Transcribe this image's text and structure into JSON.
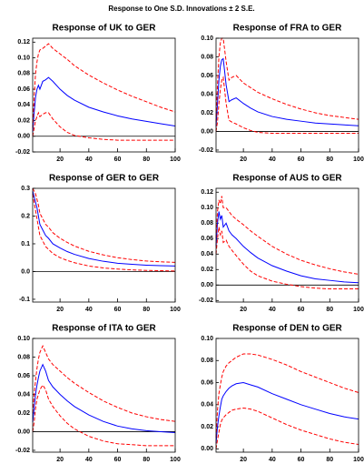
{
  "title": "Response to One S.D. Innovations ± 2 S.E.",
  "chart_data": [
    {
      "type": "line",
      "title": "Response of UK to GER",
      "x": [
        1,
        2,
        3,
        4,
        5,
        6,
        8,
        10,
        12,
        15,
        20,
        25,
        30,
        40,
        50,
        60,
        70,
        80,
        90,
        100
      ],
      "series": [
        {
          "color": "#0000ff",
          "style": "solid",
          "values": [
            0.005,
            0.03,
            0.05,
            0.06,
            0.065,
            0.06,
            0.07,
            0.072,
            0.075,
            0.07,
            0.06,
            0.052,
            0.046,
            0.037,
            0.031,
            0.026,
            0.022,
            0.019,
            0.016,
            0.013
          ]
        },
        {
          "color": "#ff0000",
          "style": "dashed",
          "values": [
            0.01,
            0.05,
            0.08,
            0.095,
            0.105,
            0.11,
            0.112,
            0.115,
            0.118,
            0.112,
            0.105,
            0.098,
            0.09,
            0.078,
            0.068,
            0.059,
            0.051,
            0.044,
            0.037,
            0.031
          ]
        },
        {
          "color": "#ff0000",
          "style": "dashed",
          "values": [
            0,
            0.01,
            0.02,
            0.025,
            0.03,
            0.025,
            0.028,
            0.03,
            0.03,
            0.022,
            0.012,
            0.005,
            0.001,
            -0.002,
            -0.004,
            -0.005,
            -0.005,
            -0.005,
            -0.005,
            -0.005
          ]
        }
      ],
      "xlim": [
        1,
        100
      ],
      "ylim": [
        -0.02,
        0.125
      ],
      "xticks": [
        20,
        40,
        60,
        80,
        100
      ],
      "yticks": [
        -0.02,
        {
          "value": 0,
          "label": "0.00"
        },
        0.02,
        0.04,
        0.06,
        0.08,
        {
          "value": 0.1,
          "label": "0.10"
        },
        0.12
      ],
      "zero_line": true
    },
    {
      "type": "line",
      "title": "Response of FRA to GER",
      "x": [
        1,
        2,
        3,
        4,
        5,
        6,
        8,
        10,
        12,
        15,
        20,
        25,
        30,
        40,
        50,
        60,
        70,
        80,
        90,
        100
      ],
      "series": [
        {
          "color": "#0000ff",
          "style": "solid",
          "values": [
            0.005,
            0.03,
            0.055,
            0.07,
            0.077,
            0.078,
            0.05,
            0.032,
            0.034,
            0.036,
            0.03,
            0.025,
            0.021,
            0.016,
            0.013,
            0.011,
            0.009,
            0.008,
            0.007,
            0.006
          ]
        },
        {
          "color": "#ff0000",
          "style": "dashed",
          "values": [
            0.01,
            0.05,
            0.08,
            0.095,
            0.1,
            0.1,
            0.075,
            0.055,
            0.058,
            0.06,
            0.052,
            0.047,
            0.042,
            0.035,
            0.029,
            0.024,
            0.02,
            0.017,
            0.015,
            0.013
          ]
        },
        {
          "color": "#ff0000",
          "style": "dashed",
          "values": [
            0,
            0.01,
            0.03,
            0.045,
            0.055,
            0.058,
            0.03,
            0.012,
            0.01,
            0.008,
            0.004,
            0.001,
            -0.001,
            -0.002,
            -0.002,
            -0.002,
            -0.002,
            -0.002,
            -0.002,
            -0.002
          ]
        }
      ],
      "xlim": [
        1,
        100
      ],
      "ylim": [
        -0.022,
        0.1
      ],
      "xticks": [
        20,
        40,
        60,
        80,
        100
      ],
      "yticks": [
        -0.02,
        {
          "value": 0,
          "label": "0.00"
        },
        0.02,
        0.04,
        0.06,
        0.08,
        {
          "value": 0.1,
          "label": "0.10"
        }
      ],
      "zero_line": true
    },
    {
      "type": "line",
      "title": "Response of GER to GER",
      "x": [
        1,
        2,
        3,
        4,
        5,
        6,
        8,
        10,
        12,
        15,
        20,
        25,
        30,
        40,
        50,
        60,
        70,
        80,
        90,
        100
      ],
      "series": [
        {
          "color": "#0000ff",
          "style": "solid",
          "values": [
            0.29,
            0.27,
            0.25,
            0.23,
            0.2,
            0.17,
            0.15,
            0.13,
            0.12,
            0.1,
            0.085,
            0.072,
            0.062,
            0.047,
            0.037,
            0.03,
            0.026,
            0.023,
            0.021,
            0.02
          ]
        },
        {
          "color": "#ff0000",
          "style": "dashed",
          "values": [
            0.3,
            0.29,
            0.28,
            0.26,
            0.24,
            0.21,
            0.19,
            0.17,
            0.16,
            0.14,
            0.12,
            0.105,
            0.092,
            0.073,
            0.06,
            0.05,
            0.043,
            0.038,
            0.035,
            0.033
          ]
        },
        {
          "color": "#ff0000",
          "style": "dashed",
          "values": [
            0.28,
            0.25,
            0.22,
            0.19,
            0.16,
            0.13,
            0.11,
            0.09,
            0.08,
            0.065,
            0.05,
            0.04,
            0.032,
            0.02,
            0.013,
            0.009,
            0.006,
            0.004,
            0.003,
            0.002
          ]
        }
      ],
      "xlim": [
        1,
        100
      ],
      "ylim": [
        -0.11,
        0.3
      ],
      "xticks": [
        20,
        40,
        60,
        80,
        100
      ],
      "yticks": [
        -0.1,
        {
          "value": 0,
          "label": "0.0"
        },
        0.1,
        0.2,
        0.3
      ],
      "zero_line": true
    },
    {
      "type": "line",
      "title": "Response of AUS to GER",
      "x": [
        1,
        2,
        3,
        4,
        5,
        6,
        8,
        10,
        12,
        15,
        20,
        25,
        30,
        40,
        50,
        60,
        70,
        80,
        90,
        100
      ],
      "series": [
        {
          "color": "#0000ff",
          "style": "solid",
          "values": [
            0.05,
            0.08,
            0.095,
            0.085,
            0.09,
            0.075,
            0.08,
            0.07,
            0.065,
            0.06,
            0.05,
            0.042,
            0.035,
            0.025,
            0.018,
            0.012,
            0.008,
            0.006,
            0.004,
            0.003
          ]
        },
        {
          "color": "#ff0000",
          "style": "dashed",
          "values": [
            0.06,
            0.095,
            0.11,
            0.105,
            0.115,
            0.1,
            0.1,
            0.095,
            0.09,
            0.085,
            0.078,
            0.07,
            0.063,
            0.05,
            0.04,
            0.032,
            0.026,
            0.021,
            0.017,
            0.014
          ]
        },
        {
          "color": "#ff0000",
          "style": "dashed",
          "values": [
            0.04,
            0.06,
            0.075,
            0.065,
            0.07,
            0.055,
            0.058,
            0.05,
            0.045,
            0.038,
            0.027,
            0.018,
            0.012,
            0.005,
            0.001,
            -0.002,
            -0.004,
            -0.005,
            -0.005,
            -0.005
          ]
        }
      ],
      "xlim": [
        1,
        100
      ],
      "ylim": [
        -0.022,
        0.125
      ],
      "xticks": [
        20,
        40,
        60,
        80,
        100
      ],
      "yticks": [
        -0.02,
        {
          "value": 0,
          "label": "0.00"
        },
        0.02,
        0.04,
        0.06,
        0.08,
        {
          "value": 0.1,
          "label": "0.10"
        },
        0.12
      ],
      "zero_line": true
    },
    {
      "type": "line",
      "title": "Response of ITA to GER",
      "x": [
        1,
        2,
        3,
        4,
        5,
        6,
        8,
        10,
        12,
        15,
        20,
        25,
        30,
        40,
        50,
        60,
        70,
        80,
        90,
        100
      ],
      "series": [
        {
          "color": "#0000ff",
          "style": "solid",
          "values": [
            0.01,
            0.025,
            0.04,
            0.05,
            0.058,
            0.065,
            0.072,
            0.065,
            0.055,
            0.048,
            0.04,
            0.033,
            0.027,
            0.018,
            0.011,
            0.006,
            0.003,
            0.001,
            0,
            -0.001
          ]
        },
        {
          "color": "#ff0000",
          "style": "dashed",
          "values": [
            0.02,
            0.04,
            0.055,
            0.068,
            0.078,
            0.085,
            0.092,
            0.085,
            0.078,
            0.072,
            0.065,
            0.058,
            0.052,
            0.042,
            0.033,
            0.026,
            0.02,
            0.016,
            0.013,
            0.011
          ]
        },
        {
          "color": "#ff0000",
          "style": "dashed",
          "values": [
            0,
            0.01,
            0.025,
            0.035,
            0.04,
            0.045,
            0.05,
            0.045,
            0.035,
            0.027,
            0.017,
            0.009,
            0.003,
            -0.005,
            -0.01,
            -0.013,
            -0.014,
            -0.015,
            -0.015,
            -0.015
          ]
        }
      ],
      "xlim": [
        1,
        100
      ],
      "ylim": [
        -0.022,
        0.1
      ],
      "xticks": [
        20,
        40,
        60,
        80,
        100
      ],
      "yticks": [
        -0.02,
        {
          "value": 0,
          "label": "0.00"
        },
        0.02,
        0.04,
        0.06,
        0.08,
        {
          "value": 0.1,
          "label": "0.10"
        }
      ],
      "zero_line": true
    },
    {
      "type": "line",
      "title": "Response of DEN to GER",
      "x": [
        1,
        2,
        3,
        4,
        5,
        6,
        8,
        10,
        12,
        15,
        20,
        25,
        30,
        40,
        50,
        60,
        70,
        80,
        90,
        100
      ],
      "series": [
        {
          "color": "#0000ff",
          "style": "solid",
          "values": [
            0.005,
            0.02,
            0.03,
            0.038,
            0.045,
            0.048,
            0.052,
            0.055,
            0.057,
            0.059,
            0.06,
            0.058,
            0.056,
            0.05,
            0.045,
            0.04,
            0.036,
            0.032,
            0.029,
            0.027
          ]
        },
        {
          "color": "#ff0000",
          "style": "dashed",
          "values": [
            0.01,
            0.035,
            0.05,
            0.058,
            0.065,
            0.07,
            0.075,
            0.078,
            0.08,
            0.083,
            0.086,
            0.086,
            0.085,
            0.081,
            0.076,
            0.07,
            0.065,
            0.06,
            0.055,
            0.051
          ]
        },
        {
          "color": "#ff0000",
          "style": "dashed",
          "values": [
            0,
            0.008,
            0.015,
            0.022,
            0.026,
            0.028,
            0.031,
            0.033,
            0.035,
            0.036,
            0.037,
            0.036,
            0.034,
            0.028,
            0.022,
            0.017,
            0.013,
            0.009,
            0.006,
            0.004
          ]
        }
      ],
      "xlim": [
        1,
        100
      ],
      "ylim": [
        -0.003,
        0.1
      ],
      "xticks": [
        20,
        40,
        60,
        80,
        100
      ],
      "yticks": [
        {
          "value": 0,
          "label": "0.00"
        },
        0.02,
        0.04,
        0.06,
        0.08,
        {
          "value": 0.1,
          "label": "0.10"
        }
      ],
      "zero_line": false
    }
  ]
}
